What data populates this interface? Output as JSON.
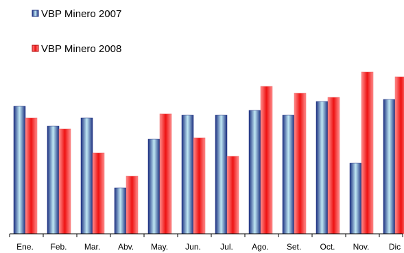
{
  "chart_data": {
    "type": "bar",
    "title": "",
    "xlabel": "",
    "ylabel": "",
    "categories": [
      "Ene.",
      "Feb.",
      "Mar.",
      "Abv.",
      "May.",
      "Jun.",
      "Jul.",
      "Ago.",
      "Set.",
      "Oct.",
      "Nov.",
      "Dic"
    ],
    "series": [
      {
        "name": "VBP Minero 2007",
        "color": "#1c2f80",
        "highlight": "#bfe8f4",
        "values": [
          186,
          157,
          169,
          67,
          138,
          173,
          173,
          180,
          173,
          193,
          103,
          196
        ]
      },
      {
        "name": "VBP Minero 2008",
        "color": "#ff5c5c",
        "highlight": "#ee1212",
        "values": [
          169,
          153,
          118,
          84,
          175,
          140,
          113,
          215,
          205,
          199,
          236,
          229
        ]
      }
    ],
    "ylim": [
      0,
      240
    ],
    "grid": false,
    "legend_position": "top-left",
    "axis_labels_visible": false
  }
}
